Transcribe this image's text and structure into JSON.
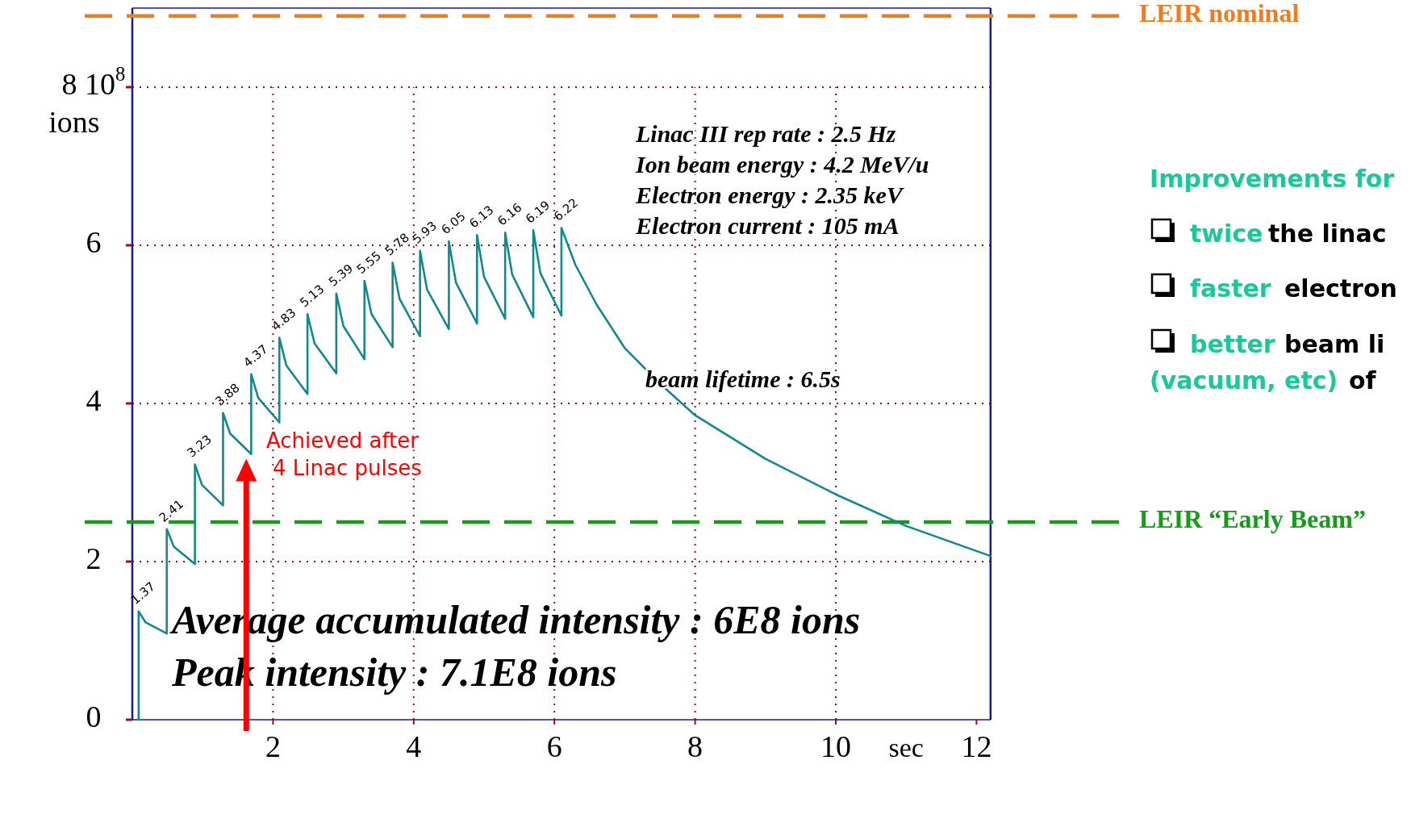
{
  "chart_data": {
    "type": "line",
    "xlabel": "sec",
    "ylabel": "ions",
    "xlim": [
      0,
      12.2
    ],
    "ylim": [
      0,
      9
    ],
    "xticks": [
      2,
      4,
      6,
      8,
      10,
      12
    ],
    "yticks": [
      0,
      2,
      4,
      6,
      {
        "value": 8,
        "label": "8 10$^{8}$"
      }
    ],
    "grid": true,
    "series": [
      {
        "color": "#12898a",
        "x": [
          0.09,
          0.09,
          0.19,
          0.49,
          0.49,
          0.59,
          0.89,
          0.89,
          0.99,
          1.29,
          1.29,
          1.39,
          1.69,
          1.69,
          1.79,
          2.09,
          2.09,
          2.19,
          2.49,
          2.49,
          2.59,
          2.9,
          2.9,
          3.0,
          3.3,
          3.3,
          3.4,
          3.7,
          3.7,
          3.8,
          4.09,
          4.09,
          4.19,
          4.5,
          4.5,
          4.6,
          4.9,
          4.9,
          5.0,
          5.3,
          5.3,
          5.4,
          5.7,
          5.7,
          5.8,
          6.1,
          6.1,
          6.3,
          6.6,
          7,
          7.5,
          8,
          9,
          10,
          11,
          12.2
        ],
        "values": [
          0,
          1.37,
          1.23,
          1.09,
          2.41,
          2.19,
          1.97,
          3.23,
          2.97,
          2.71,
          3.88,
          3.62,
          3.36,
          4.37,
          4.07,
          3.76,
          4.83,
          4.48,
          4.12,
          5.13,
          4.76,
          4.38,
          5.39,
          4.98,
          4.56,
          5.55,
          5.13,
          4.71,
          5.78,
          5.32,
          4.85,
          5.93,
          5.44,
          4.94,
          6.05,
          5.53,
          5.01,
          6.13,
          5.6,
          5.07,
          6.16,
          5.63,
          5.09,
          6.19,
          5.65,
          5.11,
          6.22,
          5.75,
          5.25,
          4.7,
          4.25,
          3.85,
          3.3,
          2.85,
          2.45,
          2.07
        ],
        "value_labels": [
          null,
          "1.37",
          null,
          null,
          "2.41",
          null,
          null,
          "3.23",
          null,
          null,
          "3.88",
          null,
          null,
          "4.37",
          null,
          null,
          "4.83",
          null,
          null,
          "5.13",
          null,
          null,
          "5.39",
          null,
          null,
          "5.55",
          null,
          null,
          "5.78",
          null,
          null,
          "5.93",
          null,
          null,
          "6.05",
          null,
          null,
          "6.13",
          null,
          null,
          "6.16",
          null,
          null,
          "6.19",
          null,
          null,
          "6.22",
          null,
          null,
          null,
          null,
          null,
          null,
          null,
          null,
          null
        ]
      }
    ],
    "ref_lines": [
      {
        "axis": "y",
        "value": 2.5,
        "label": "LEIR “Early Beam”",
        "color": "#169c16",
        "line_style": "dashed"
      },
      {
        "axis": "y",
        "value": 8.9,
        "label": "LEIR nominal",
        "color": "#f57a1f",
        "line_style": "dashed"
      }
    ],
    "annotations": [
      "Linac III rep rate : 2.5 Hz",
      "Ion beam energy : 4.2 MeV/u",
      "Electron energy : 2.35 keV",
      "Electron current : 105 mA",
      "beam lifetime : 6.5s",
      "Average accumulated intensity : 6E8 ions",
      "Peak intensity : 7.1E8 ions",
      "Achieved after\n4 Linac pulses",
      "Improvements for",
      "twice",
      "the linac",
      "faster",
      "electron",
      "better",
      "beam li",
      "(vacuum, etc)",
      "of"
    ]
  }
}
